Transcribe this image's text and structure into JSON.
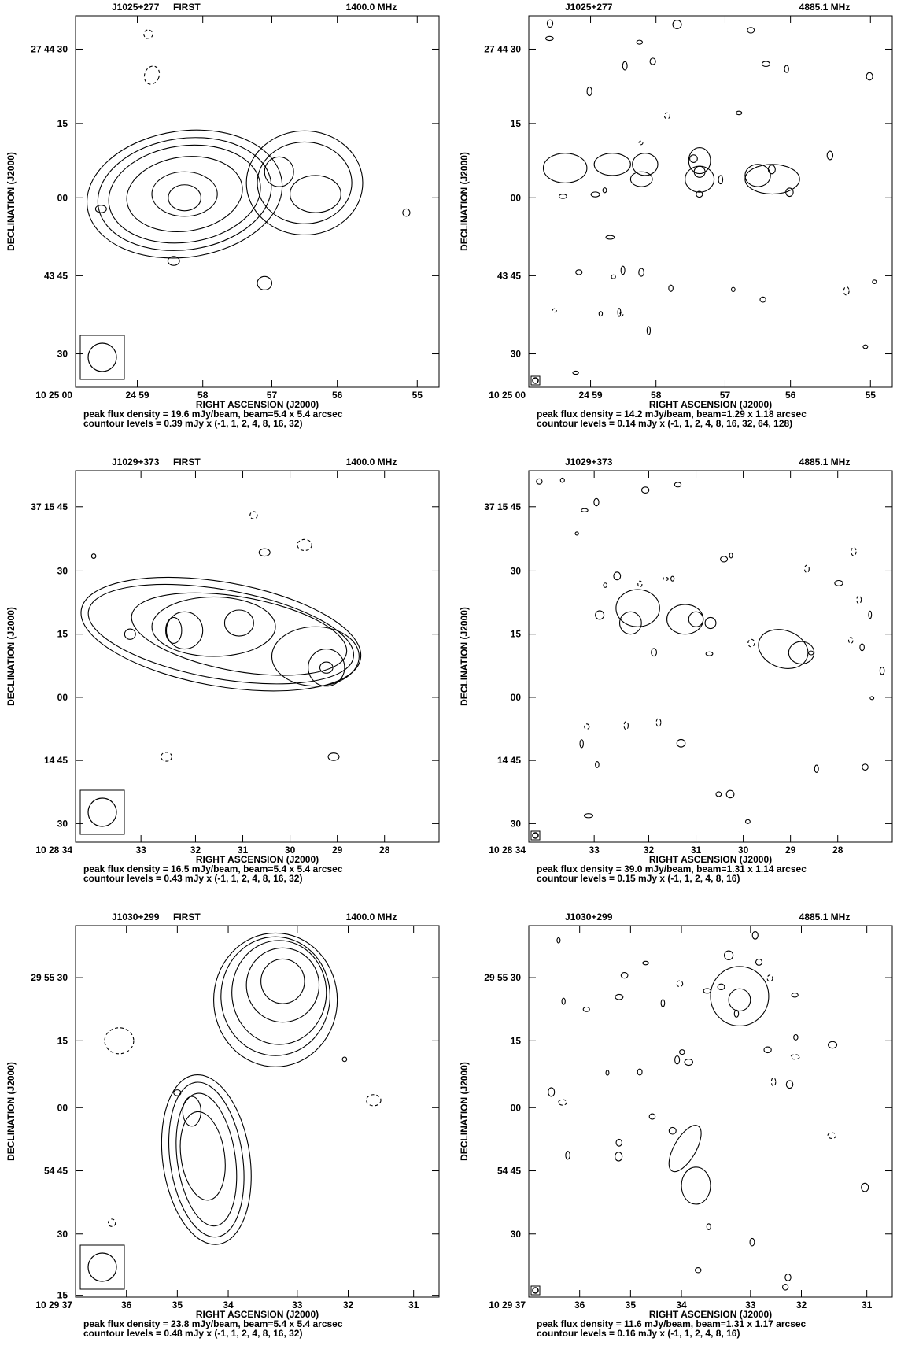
{
  "panels": [
    {
      "source": "J1025+277",
      "survey": "FIRST",
      "frequency": "1400.0 MHz",
      "y_label": "DECLINATION (J2000)",
      "x_label": "RIGHT ASCENSION (J2000)",
      "yticks": [
        "27 44 30",
        "15",
        "00",
        "43 45",
        "30"
      ],
      "xticks": [
        "10 25 00",
        "24 59",
        "58",
        "57",
        "56",
        "55"
      ],
      "peak": "peak flux density = 19.6 mJy/beam, beam=5.4 x 5.4 arcsec",
      "contours": "countour levels = 0.39 mJy x (-1, 1, 2, 4, 8, 16, 32)"
    },
    {
      "source": "J1025+277",
      "frequency": "4885.1 MHz",
      "y_label": "DECLINATION (J2000)",
      "x_label": "RIGHT ASCENSION (J2000)",
      "yticks": [
        "27 44 30",
        "15",
        "00",
        "43 45",
        "30"
      ],
      "xticks": [
        "10 25 00",
        "24 59",
        "58",
        "57",
        "56",
        "55"
      ],
      "peak": "peak flux density = 14.2 mJy/beam, beam=1.29 x 1.18 arcsec",
      "contours": "countour levels = 0.14 mJy x (-1, 1, 2, 4, 8, 16, 32, 64, 128)"
    },
    {
      "source": "J1029+373",
      "survey": "FIRST",
      "frequency": "1400.0 MHz",
      "y_label": "DECLINATION (J2000)",
      "x_label": "RIGHT ASCENSION (J2000)",
      "yticks": [
        "37 15 45",
        "30",
        "15",
        "00",
        "14 45",
        "30"
      ],
      "xticks": [
        "10 28 34",
        "33",
        "32",
        "31",
        "30",
        "29",
        "28"
      ],
      "peak": "peak flux density = 16.5 mJy/beam, beam=5.4 x 5.4 arcsec",
      "contours": "countour levels = 0.43 mJy x (-1, 1, 2, 4, 8, 16, 32)"
    },
    {
      "source": "J1029+373",
      "frequency": "4885.1 MHz",
      "y_label": "DECLINATION (J2000)",
      "x_label": "RIGHT ASCENSION (J2000)",
      "yticks": [
        "37 15 45",
        "30",
        "15",
        "00",
        "14 45",
        "30"
      ],
      "xticks": [
        "10 28 34",
        "33",
        "32",
        "31",
        "30",
        "29",
        "28"
      ],
      "peak": "peak flux density = 39.0 mJy/beam, beam=1.31 x 1.14 arcsec",
      "contours": "countour levels = 0.15 mJy x (-1, 1, 2, 4, 8, 16)"
    },
    {
      "source": "J1030+299",
      "survey": "FIRST",
      "frequency": "1400.0 MHz",
      "y_label": "DECLINATION (J2000)",
      "x_label": "RIGHT ASCENSION (J2000)",
      "yticks": [
        "29 55 30",
        "15",
        "00",
        "54 45",
        "30",
        "15"
      ],
      "xticks": [
        "10 29 37",
        "36",
        "35",
        "34",
        "33",
        "32",
        "31"
      ],
      "peak": "peak flux density = 23.8 mJy/beam, beam=5.4 x 5.4 arcsec",
      "contours": "countour levels = 0.48 mJy x (-1, 1, 2, 4, 8, 16, 32)"
    },
    {
      "source": "J1030+299",
      "frequency": "4885.1 MHz",
      "y_label": "DECLINATION (J2000)",
      "x_label": "RIGHT ASCENSION (J2000)",
      "yticks": [
        "29 55 30",
        "15",
        "00",
        "54 45",
        "30"
      ],
      "xticks": [
        "10 29 37",
        "36",
        "35",
        "34",
        "33",
        "32",
        "31"
      ],
      "peak": "peak flux density = 11.6 mJy/beam, beam=1.31 x 1.17 arcsec",
      "contours": "countour levels = 0.16 mJy x (-1, 1, 2, 4, 8, 16)"
    }
  ]
}
